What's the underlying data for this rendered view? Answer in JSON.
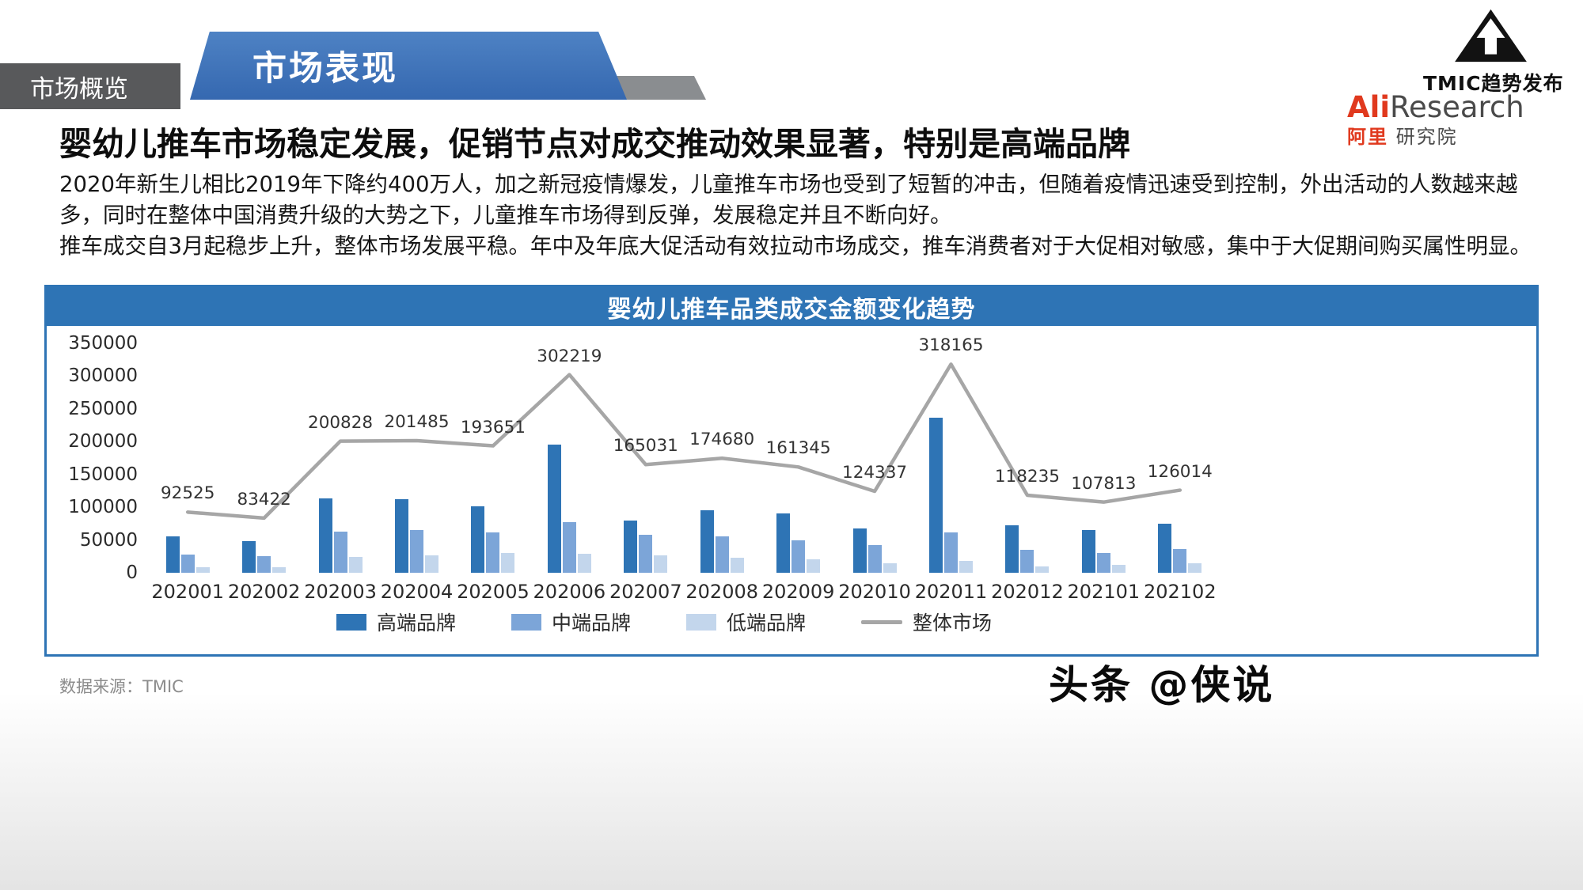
{
  "tabs": {
    "overview": "市场概览"
  },
  "banner": {
    "title": "市场表现"
  },
  "logos": {
    "tmic": "TMIC趋势发布",
    "ali_red": "Ali",
    "ali_gray": "Research",
    "ali_cn_red": "阿里",
    "ali_cn_gray": "研究院"
  },
  "heading": "婴幼儿推车市场稳定发展，促销节点对成交推动效果显著，特别是高端品牌",
  "paragraphs": [
    "2020年新生儿相比2019年下降约400万人，加之新冠疫情爆发，儿童推车市场也受到了短暂的冲击，但随着疫情迅速受到控制，外出活动的人数越来越多，同时在整体中国消费升级的大势之下，儿童推车市场得到反弹，发展稳定并且不断向好。",
    "推车成交自3月起稳步上升，整体市场发展平稳。年中及年底大促活动有效拉动市场成交，推车消费者对于大促相对敏感，集中于大促期间购买属性明显。"
  ],
  "source": "数据来源：TMIC",
  "watermark": "头条 @侠说",
  "chart_data": {
    "type": "bar+line",
    "title": "婴幼儿推车品类成交金额变化趋势",
    "categories": [
      "202001",
      "202002",
      "202003",
      "202004",
      "202005",
      "202006",
      "202007",
      "202008",
      "202009",
      "202010",
      "202011",
      "202012",
      "202101",
      "202102"
    ],
    "series": [
      {
        "name": "高端品牌",
        "type": "bar",
        "color": "#2E74B5",
        "values": [
          56000,
          48000,
          114000,
          112000,
          101000,
          196000,
          80000,
          95000,
          91000,
          68000,
          237000,
          73000,
          65000,
          75000
        ]
      },
      {
        "name": "中端品牌",
        "type": "bar",
        "color": "#7CA5D8",
        "values": [
          28000,
          25000,
          63000,
          65000,
          62000,
          77000,
          58000,
          56000,
          50000,
          42000,
          62000,
          35000,
          30000,
          36000
        ]
      },
      {
        "name": "低端品牌",
        "type": "bar",
        "color": "#C3D6EC",
        "values": [
          8000,
          9000,
          24000,
          26000,
          30000,
          29000,
          26000,
          23000,
          20000,
          14000,
          18000,
          10000,
          12000,
          15000
        ]
      },
      {
        "name": "整体市场",
        "type": "line",
        "color": "#A6A6A6",
        "values": [
          92525,
          83422,
          200828,
          201485,
          193651,
          302219,
          165031,
          174680,
          161345,
          124337,
          318165,
          118235,
          107813,
          126014
        ],
        "labels_visible": true
      }
    ],
    "ylim": [
      0,
      350000
    ],
    "ytick_step": 50000,
    "grid": false,
    "legend_position": "bottom"
  }
}
